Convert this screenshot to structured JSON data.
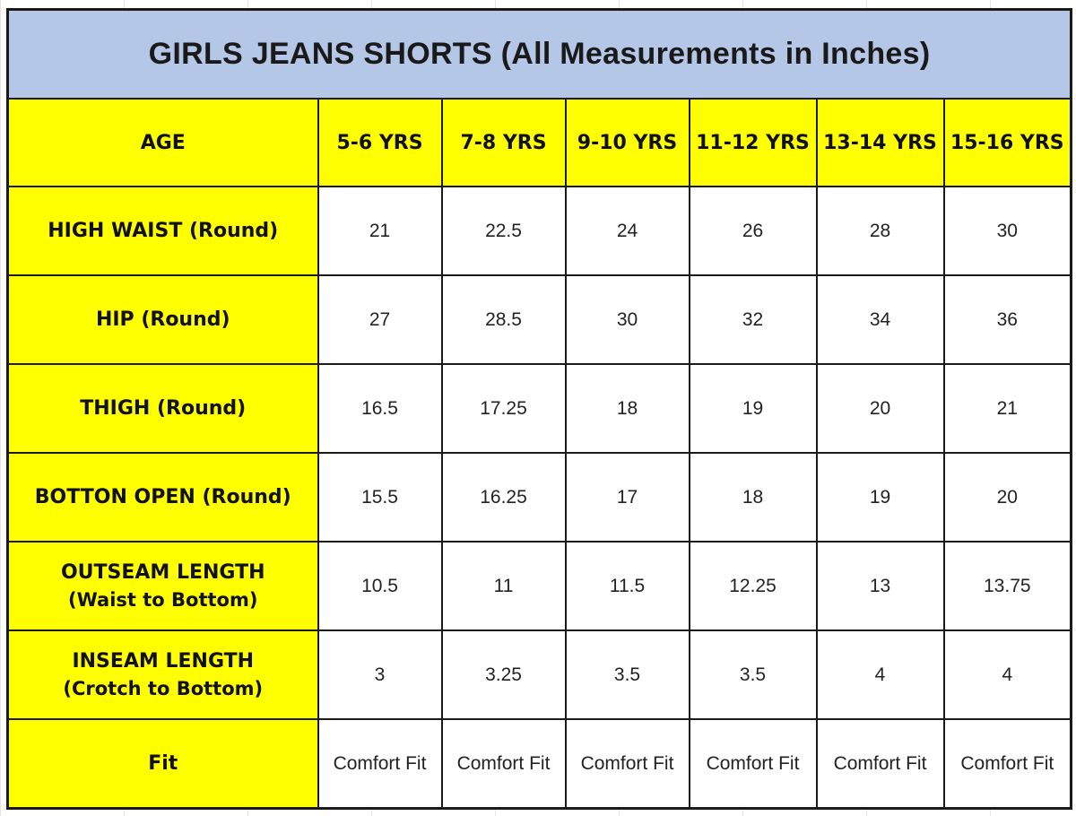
{
  "title": "GIRLS JEANS SHORTS (All Measurements in Inches)",
  "colors": {
    "title_bg": "#b4c7e7",
    "label_bg": "#ffff00",
    "cell_bg": "#ffffff",
    "border": "#1a1a1a"
  },
  "header": {
    "label": "AGE",
    "sizes": [
      "5-6 YRS",
      "7-8 YRS",
      "9-10 YRS",
      "11-12 YRS",
      "13-14 YRS",
      "15-16 YRS"
    ]
  },
  "rows": [
    {
      "label": "HIGH WAIST (Round)",
      "sub": "",
      "values": [
        "21",
        "22.5",
        "24",
        "26",
        "28",
        "30"
      ]
    },
    {
      "label": "HIP (Round)",
      "sub": "",
      "values": [
        "27",
        "28.5",
        "30",
        "32",
        "34",
        "36"
      ]
    },
    {
      "label": "THIGH (Round)",
      "sub": "",
      "values": [
        "16.5",
        "17.25",
        "18",
        "19",
        "20",
        "21"
      ]
    },
    {
      "label": "BOTTON OPEN (Round)",
      "sub": "",
      "values": [
        "15.5",
        "16.25",
        "17",
        "18",
        "19",
        "20"
      ]
    },
    {
      "label": "OUTSEAM LENGTH",
      "sub": "(Waist to Bottom)",
      "values": [
        "10.5",
        "11",
        "11.5",
        "12.25",
        "13",
        "13.75"
      ]
    },
    {
      "label": "INSEAM LENGTH",
      "sub": "(Crotch to Bottom)",
      "values": [
        "3",
        "3.25",
        "3.5",
        "3.5",
        "4",
        "4"
      ]
    },
    {
      "label": "Fit",
      "sub": "",
      "values": [
        "Comfort Fit",
        "Comfort Fit",
        "Comfort Fit",
        "Comfort Fit",
        "Comfort Fit",
        "Comfort Fit"
      ]
    }
  ]
}
